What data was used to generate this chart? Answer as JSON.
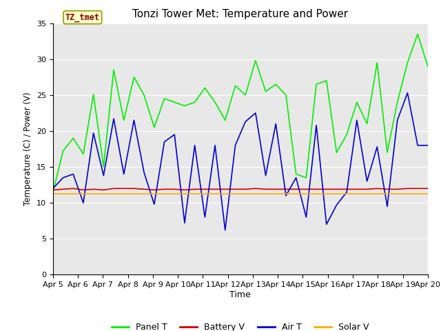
{
  "title": "Tonzi Tower Met: Temperature and Power",
  "xlabel": "Time",
  "ylabel": "Temperature (C) / Power (V)",
  "annotation": "TZ_tmet",
  "ylim": [
    0,
    35
  ],
  "yticks": [
    0,
    5,
    10,
    15,
    20,
    25,
    30,
    35
  ],
  "xtick_labels": [
    "Apr 5",
    "Apr 6",
    "Apr 7",
    "Apr 8",
    "Apr 9",
    "Apr 10",
    "Apr 11",
    "Apr 12",
    "Apr 13",
    "Apr 14",
    "Apr 15",
    "Apr 16",
    "Apr 17",
    "Apr 18",
    "Apr 19",
    "Apr 20"
  ],
  "background_color": "#e8e8e8",
  "panel_t_color": "#00ee00",
  "battery_v_color": "#cc0000",
  "air_t_color": "#0000cc",
  "solar_v_color": "#ffaa00",
  "panel_t": [
    11.5,
    17.2,
    19.0,
    16.8,
    25.1,
    15.0,
    28.5,
    21.5,
    27.5,
    25.0,
    20.5,
    24.5,
    24.0,
    23.5,
    24.0,
    26.0,
    24.0,
    21.5,
    26.3,
    25.0,
    29.8,
    25.5,
    26.5,
    25.0,
    14.0,
    13.5,
    26.5,
    27.0,
    17.0,
    19.5,
    24.0,
    21.0,
    29.5,
    17.0,
    24.0,
    29.5,
    33.5,
    29.0
  ],
  "air_t": [
    12.0,
    13.5,
    14.0,
    10.0,
    19.7,
    13.8,
    21.7,
    14.0,
    21.5,
    14.2,
    9.8,
    18.5,
    19.5,
    7.2,
    18.0,
    8.0,
    18.0,
    6.2,
    18.0,
    21.3,
    22.5,
    13.8,
    21.0,
    11.0,
    13.5,
    8.0,
    20.8,
    7.0,
    9.7,
    11.5,
    21.5,
    13.0,
    17.8,
    9.5,
    21.5,
    25.3,
    18.0,
    18.0
  ],
  "battery_v": [
    11.8,
    11.9,
    12.0,
    11.8,
    11.9,
    11.8,
    12.0,
    12.0,
    12.0,
    11.9,
    11.8,
    11.9,
    11.9,
    11.8,
    11.9,
    11.9,
    11.9,
    11.9,
    11.9,
    11.9,
    12.0,
    11.9,
    11.9,
    11.9,
    11.9,
    11.9,
    11.9,
    11.9,
    11.9,
    11.9,
    11.9,
    11.9,
    12.0,
    11.9,
    11.9,
    12.0,
    12.0,
    12.0
  ],
  "solar_v": [
    11.3,
    11.3,
    11.3,
    11.3,
    11.3,
    11.3,
    11.3,
    11.3,
    11.3,
    11.3,
    11.3,
    11.3,
    11.3,
    11.3,
    11.3,
    11.3,
    11.3,
    11.3,
    11.3,
    11.3,
    11.3,
    11.3,
    11.3,
    11.3,
    11.3,
    11.3,
    11.3,
    11.3,
    11.3,
    11.3,
    11.3,
    11.3,
    11.3,
    11.3,
    11.3,
    11.3,
    11.3,
    11.3
  ]
}
